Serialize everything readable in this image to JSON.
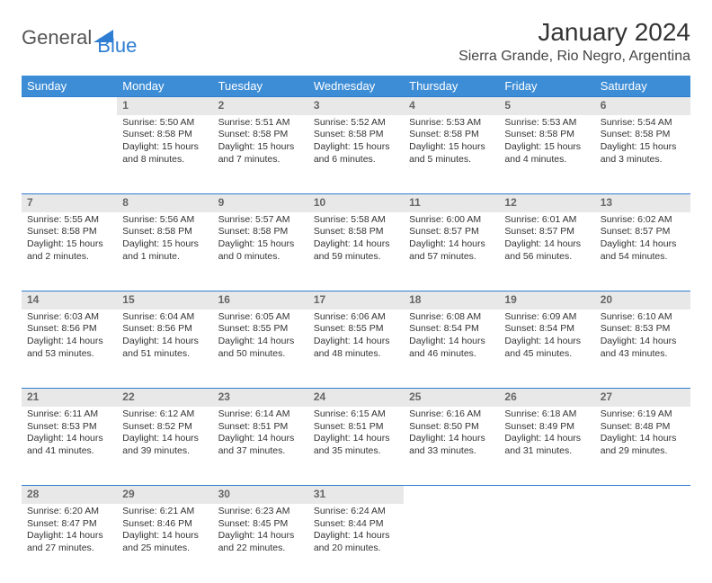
{
  "logo": {
    "text1": "General",
    "text2": "Blue"
  },
  "title": "January 2024",
  "location": "Sierra Grande, Rio Negro, Argentina",
  "colors": {
    "header_bg": "#3d8dd6",
    "daynum_bg": "#e8e8e8",
    "accent": "#2d7dd2"
  },
  "weekdays": [
    "Sunday",
    "Monday",
    "Tuesday",
    "Wednesday",
    "Thursday",
    "Friday",
    "Saturday"
  ],
  "weeks": [
    {
      "nums": [
        "",
        "1",
        "2",
        "3",
        "4",
        "5",
        "6"
      ],
      "cells": [
        null,
        {
          "sunrise": "Sunrise: 5:50 AM",
          "sunset": "Sunset: 8:58 PM",
          "day": "Daylight: 15 hours and 8 minutes."
        },
        {
          "sunrise": "Sunrise: 5:51 AM",
          "sunset": "Sunset: 8:58 PM",
          "day": "Daylight: 15 hours and 7 minutes."
        },
        {
          "sunrise": "Sunrise: 5:52 AM",
          "sunset": "Sunset: 8:58 PM",
          "day": "Daylight: 15 hours and 6 minutes."
        },
        {
          "sunrise": "Sunrise: 5:53 AM",
          "sunset": "Sunset: 8:58 PM",
          "day": "Daylight: 15 hours and 5 minutes."
        },
        {
          "sunrise": "Sunrise: 5:53 AM",
          "sunset": "Sunset: 8:58 PM",
          "day": "Daylight: 15 hours and 4 minutes."
        },
        {
          "sunrise": "Sunrise: 5:54 AM",
          "sunset": "Sunset: 8:58 PM",
          "day": "Daylight: 15 hours and 3 minutes."
        }
      ]
    },
    {
      "nums": [
        "7",
        "8",
        "9",
        "10",
        "11",
        "12",
        "13"
      ],
      "cells": [
        {
          "sunrise": "Sunrise: 5:55 AM",
          "sunset": "Sunset: 8:58 PM",
          "day": "Daylight: 15 hours and 2 minutes."
        },
        {
          "sunrise": "Sunrise: 5:56 AM",
          "sunset": "Sunset: 8:58 PM",
          "day": "Daylight: 15 hours and 1 minute."
        },
        {
          "sunrise": "Sunrise: 5:57 AM",
          "sunset": "Sunset: 8:58 PM",
          "day": "Daylight: 15 hours and 0 minutes."
        },
        {
          "sunrise": "Sunrise: 5:58 AM",
          "sunset": "Sunset: 8:58 PM",
          "day": "Daylight: 14 hours and 59 minutes."
        },
        {
          "sunrise": "Sunrise: 6:00 AM",
          "sunset": "Sunset: 8:57 PM",
          "day": "Daylight: 14 hours and 57 minutes."
        },
        {
          "sunrise": "Sunrise: 6:01 AM",
          "sunset": "Sunset: 8:57 PM",
          "day": "Daylight: 14 hours and 56 minutes."
        },
        {
          "sunrise": "Sunrise: 6:02 AM",
          "sunset": "Sunset: 8:57 PM",
          "day": "Daylight: 14 hours and 54 minutes."
        }
      ]
    },
    {
      "nums": [
        "14",
        "15",
        "16",
        "17",
        "18",
        "19",
        "20"
      ],
      "cells": [
        {
          "sunrise": "Sunrise: 6:03 AM",
          "sunset": "Sunset: 8:56 PM",
          "day": "Daylight: 14 hours and 53 minutes."
        },
        {
          "sunrise": "Sunrise: 6:04 AM",
          "sunset": "Sunset: 8:56 PM",
          "day": "Daylight: 14 hours and 51 minutes."
        },
        {
          "sunrise": "Sunrise: 6:05 AM",
          "sunset": "Sunset: 8:55 PM",
          "day": "Daylight: 14 hours and 50 minutes."
        },
        {
          "sunrise": "Sunrise: 6:06 AM",
          "sunset": "Sunset: 8:55 PM",
          "day": "Daylight: 14 hours and 48 minutes."
        },
        {
          "sunrise": "Sunrise: 6:08 AM",
          "sunset": "Sunset: 8:54 PM",
          "day": "Daylight: 14 hours and 46 minutes."
        },
        {
          "sunrise": "Sunrise: 6:09 AM",
          "sunset": "Sunset: 8:54 PM",
          "day": "Daylight: 14 hours and 45 minutes."
        },
        {
          "sunrise": "Sunrise: 6:10 AM",
          "sunset": "Sunset: 8:53 PM",
          "day": "Daylight: 14 hours and 43 minutes."
        }
      ]
    },
    {
      "nums": [
        "21",
        "22",
        "23",
        "24",
        "25",
        "26",
        "27"
      ],
      "cells": [
        {
          "sunrise": "Sunrise: 6:11 AM",
          "sunset": "Sunset: 8:53 PM",
          "day": "Daylight: 14 hours and 41 minutes."
        },
        {
          "sunrise": "Sunrise: 6:12 AM",
          "sunset": "Sunset: 8:52 PM",
          "day": "Daylight: 14 hours and 39 minutes."
        },
        {
          "sunrise": "Sunrise: 6:14 AM",
          "sunset": "Sunset: 8:51 PM",
          "day": "Daylight: 14 hours and 37 minutes."
        },
        {
          "sunrise": "Sunrise: 6:15 AM",
          "sunset": "Sunset: 8:51 PM",
          "day": "Daylight: 14 hours and 35 minutes."
        },
        {
          "sunrise": "Sunrise: 6:16 AM",
          "sunset": "Sunset: 8:50 PM",
          "day": "Daylight: 14 hours and 33 minutes."
        },
        {
          "sunrise": "Sunrise: 6:18 AM",
          "sunset": "Sunset: 8:49 PM",
          "day": "Daylight: 14 hours and 31 minutes."
        },
        {
          "sunrise": "Sunrise: 6:19 AM",
          "sunset": "Sunset: 8:48 PM",
          "day": "Daylight: 14 hours and 29 minutes."
        }
      ]
    },
    {
      "nums": [
        "28",
        "29",
        "30",
        "31",
        "",
        "",
        ""
      ],
      "cells": [
        {
          "sunrise": "Sunrise: 6:20 AM",
          "sunset": "Sunset: 8:47 PM",
          "day": "Daylight: 14 hours and 27 minutes."
        },
        {
          "sunrise": "Sunrise: 6:21 AM",
          "sunset": "Sunset: 8:46 PM",
          "day": "Daylight: 14 hours and 25 minutes."
        },
        {
          "sunrise": "Sunrise: 6:23 AM",
          "sunset": "Sunset: 8:45 PM",
          "day": "Daylight: 14 hours and 22 minutes."
        },
        {
          "sunrise": "Sunrise: 6:24 AM",
          "sunset": "Sunset: 8:44 PM",
          "day": "Daylight: 14 hours and 20 minutes."
        },
        null,
        null,
        null
      ]
    }
  ]
}
